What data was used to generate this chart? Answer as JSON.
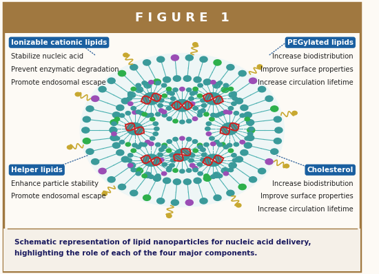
{
  "title": "F I G U R E   1",
  "title_bg": "#a07840",
  "title_color": "#ffffff",
  "outer_border_color": "#a07840",
  "inner_bg": "#fdfaf5",
  "caption_line1": "Schematic representation of lipid nanoparticles for nucleic acid delivery,",
  "caption_line2": "highlighting the role of each of the four major components.",
  "caption_color": "#1a1a5e",
  "labels": {
    "top_left": "Ionizable cationic lipids",
    "top_right": "PEGylated lipids",
    "bottom_left": "Helper lipids",
    "bottom_right": "Cholesterol"
  },
  "label_bg": "#1a5fa0",
  "label_color": "#ffffff",
  "descriptions": {
    "top_left": [
      "Stabilize nucleic acid",
      "Prevent enzymatic degradation",
      "Promote endosomal escape"
    ],
    "top_right": [
      "Increase biodistribution",
      "Improve surface properties",
      "Increase circulation lifetime"
    ],
    "bottom_left": [
      "Enhance particle stability",
      "Promote endosomal escape"
    ],
    "bottom_right": [
      "Increase biodistribution",
      "Improve surface properties",
      "Increase circulation lifetime"
    ]
  },
  "desc_color": "#222222",
  "outer_lipid_color": "#3a9a9a",
  "green_bead_color": "#2db04b",
  "purple_bead_color": "#9b4db5",
  "rna_color": "#cc2222",
  "peg_color": "#c8a830",
  "tail_color": "#4ab0b0"
}
